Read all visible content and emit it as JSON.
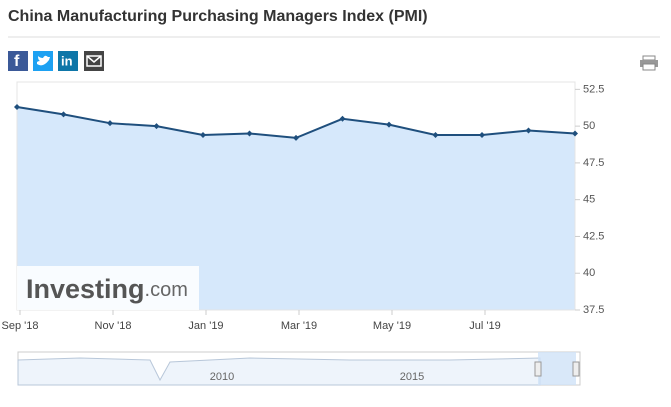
{
  "header": {
    "title": "China Manufacturing Purchasing Managers Index (PMI)"
  },
  "chart_data": {
    "type": "line",
    "categories": [
      "Sep '18",
      null,
      "Nov '18",
      null,
      "Jan '19",
      null,
      "Mar '19",
      null,
      "May '19",
      null,
      "Jul '19",
      null,
      null
    ],
    "series": [
      {
        "color": "#1f4f7d",
        "values": [
          51.3,
          50.8,
          50.2,
          50.0,
          49.4,
          49.5,
          49.2,
          50.5,
          50.1,
          49.4,
          49.4,
          49.7,
          49.5
        ]
      }
    ],
    "ylim": [
      37.5,
      53
    ],
    "yticks": [
      37.5,
      40,
      42.5,
      45,
      47.5,
      50,
      52.5
    ],
    "fill": "#d6e8fb"
  },
  "watermark": {
    "brand": "Investing",
    "suffix": ".com"
  },
  "navigator": {
    "labels": [
      "2010",
      "2015"
    ]
  }
}
